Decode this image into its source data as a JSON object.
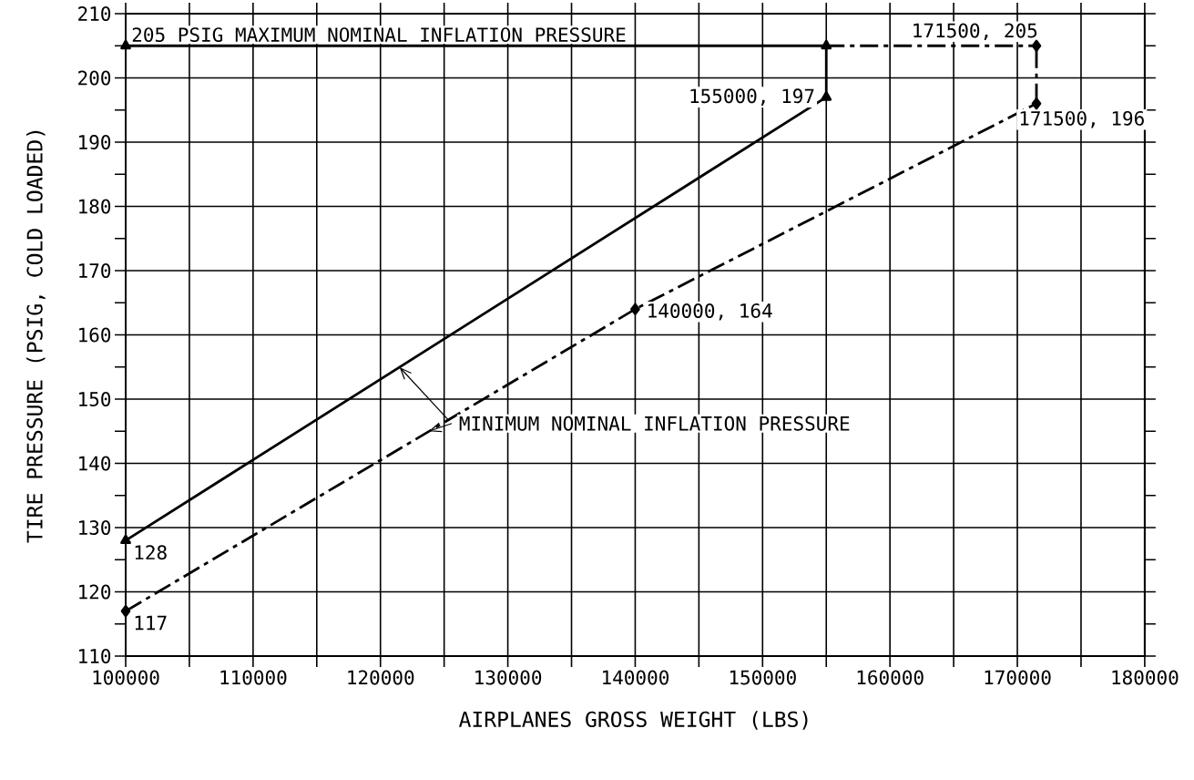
{
  "chart_data": {
    "type": "line",
    "xlabel": "AIRPLANES GROSS WEIGHT (LBS)",
    "ylabel": "TIRE PRESSURE (PSIG, COLD LOADED)",
    "xlim": [
      100000,
      180000
    ],
    "ylim": [
      110,
      210
    ],
    "xticks": [
      100000,
      {
        "value": 105000,
        "label": null
      },
      110000,
      {
        "value": 115000,
        "label": null
      },
      120000,
      {
        "value": 125000,
        "label": null
      },
      130000,
      {
        "value": 135000,
        "label": null
      },
      140000,
      {
        "value": 145000,
        "label": null
      },
      150000,
      {
        "value": 155000,
        "label": null
      },
      160000,
      {
        "value": 165000,
        "label": null
      },
      170000,
      {
        "value": 175000,
        "label": null
      },
      180000
    ],
    "yticks": [
      110,
      {
        "value": 115,
        "label": null
      },
      120,
      {
        "value": 125,
        "label": null
      },
      130,
      {
        "value": 135,
        "label": null
      },
      140,
      {
        "value": 145,
        "label": null
      },
      150,
      {
        "value": 155,
        "label": null
      },
      160,
      {
        "value": 165,
        "label": null
      },
      170,
      {
        "value": 175,
        "label": null
      },
      180,
      {
        "value": 185,
        "label": null
      },
      190,
      {
        "value": 195,
        "label": null
      },
      200,
      {
        "value": 205,
        "label": null
      },
      210
    ],
    "grid": true,
    "series": [
      {
        "color": "#000000",
        "marker": "triangle",
        "line_style": "solid",
        "x": [
          100000,
          155000,
          155000,
          100000
        ],
        "values": [
          128,
          197,
          205,
          205
        ]
      },
      {
        "color": "#000000",
        "marker": "diamond",
        "line_style": "dashdot",
        "x": [
          100000,
          140000,
          171500,
          171500
        ],
        "values": [
          117,
          164,
          196,
          205
        ]
      },
      {
        "color": "#000000",
        "marker": "none",
        "line_style": "dashdot",
        "x": [
          155000,
          171500
        ],
        "values": [
          205,
          205
        ]
      }
    ],
    "annotations": [
      {
        "text": "205 PSIG MAXIMUM NOMINAL INFLATION PRESSURE",
        "x": 100000,
        "y": 205
      },
      {
        "text": "155000, 197",
        "x": 155000,
        "y": 197
      },
      {
        "text": "171500, 205",
        "x": 171500,
        "y": 205
      },
      {
        "text": "171500, 196",
        "x": 171500,
        "y": 196
      },
      {
        "text": "140000, 164",
        "x": 140000,
        "y": 164
      },
      {
        "text": "128",
        "x": 100000,
        "y": 128
      },
      {
        "text": "117",
        "x": 100000,
        "y": 117
      },
      {
        "text": "MINIMUM NOMINAL INFLATION PRESSURE",
        "x": 123800,
        "y": 145
      }
    ]
  }
}
